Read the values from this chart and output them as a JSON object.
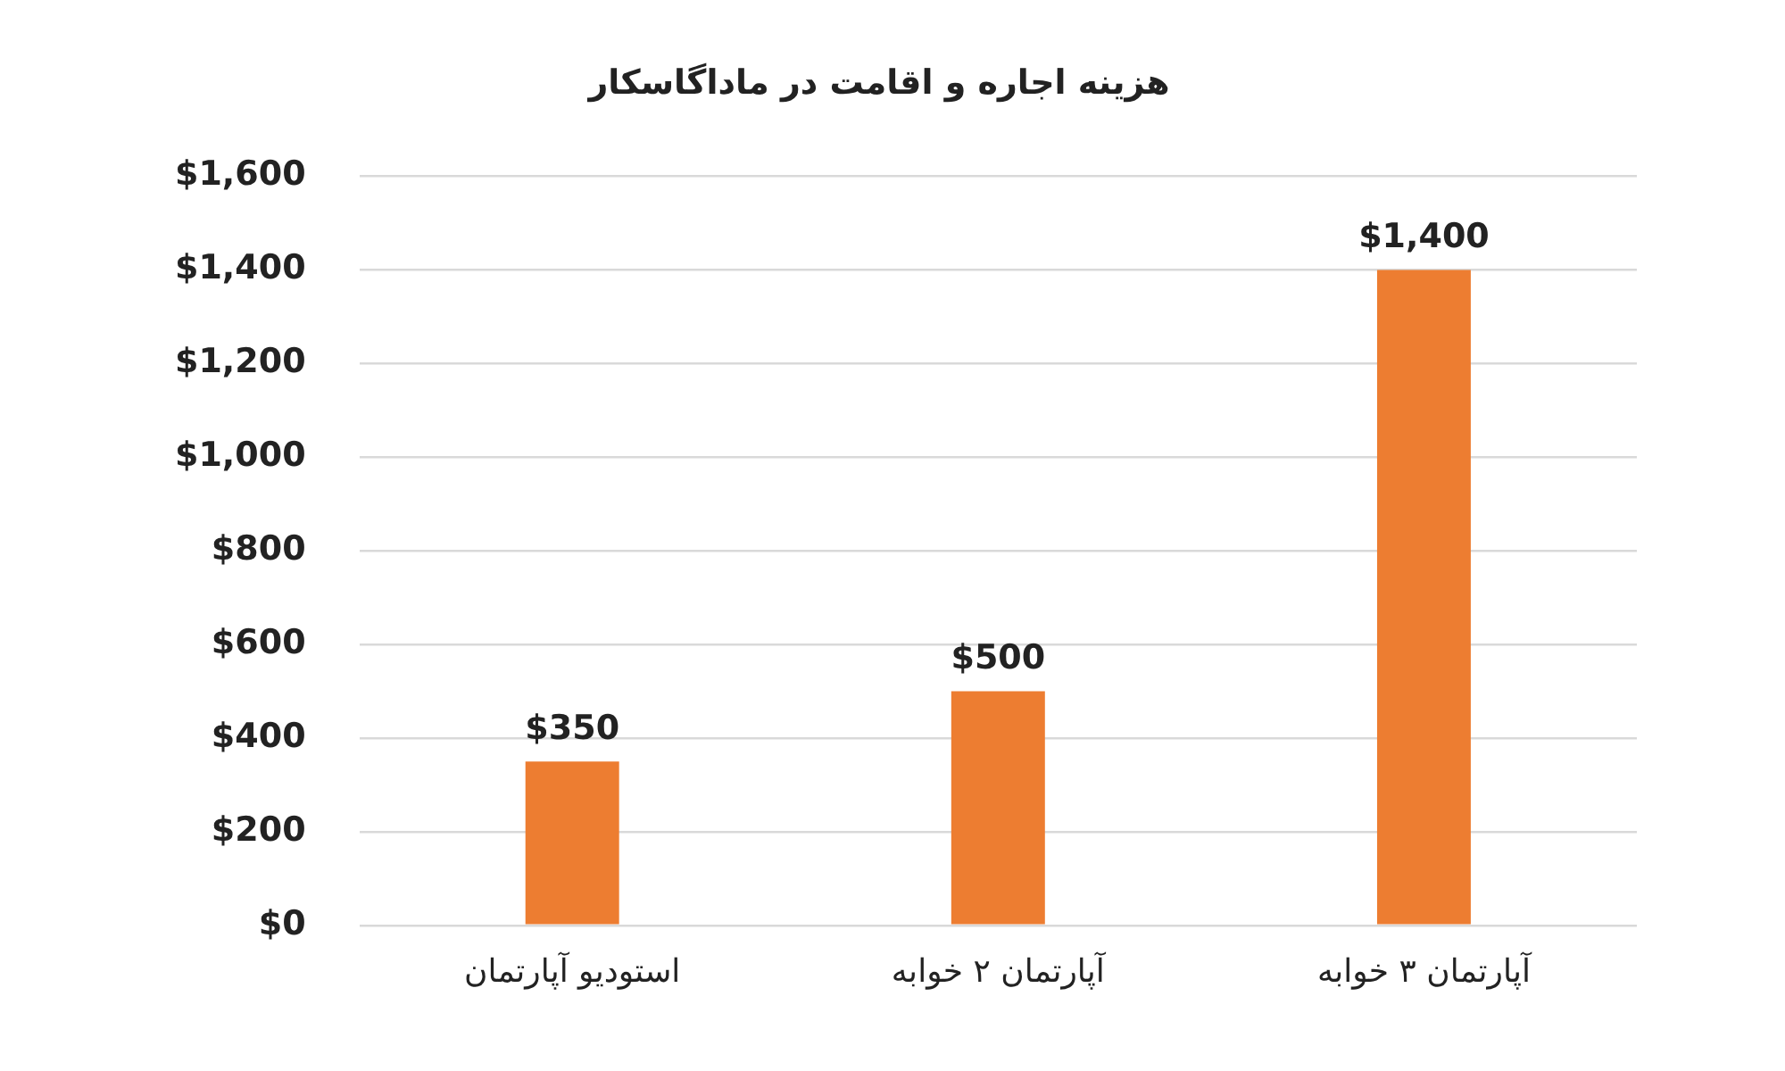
{
  "chart_data": {
    "type": "bar",
    "title": "هزینه اجاره و اقامت در ماداگاسکار",
    "categories": [
      "استودیو آپارتمان",
      "آپارتمان ۲ خوابه",
      "آپارتمان ۳ خوابه"
    ],
    "values": [
      350,
      500,
      1400
    ],
    "value_labels": [
      "$350",
      "$500",
      "$1,400"
    ],
    "color": "#ed7d31",
    "ylim": [
      0,
      1600
    ],
    "yticks": [
      {
        "value": 0,
        "label": "$0"
      },
      {
        "value": 200,
        "label": "$200"
      },
      {
        "value": 400,
        "label": "$400"
      },
      {
        "value": 600,
        "label": "$600"
      },
      {
        "value": 800,
        "label": "$800"
      },
      {
        "value": 1000,
        "label": "$1,000"
      },
      {
        "value": 1200,
        "label": "$1,200"
      },
      {
        "value": 1400,
        "label": "$1,400"
      },
      {
        "value": 1600,
        "label": "$1,600"
      }
    ],
    "grid": "y",
    "legend": false
  }
}
